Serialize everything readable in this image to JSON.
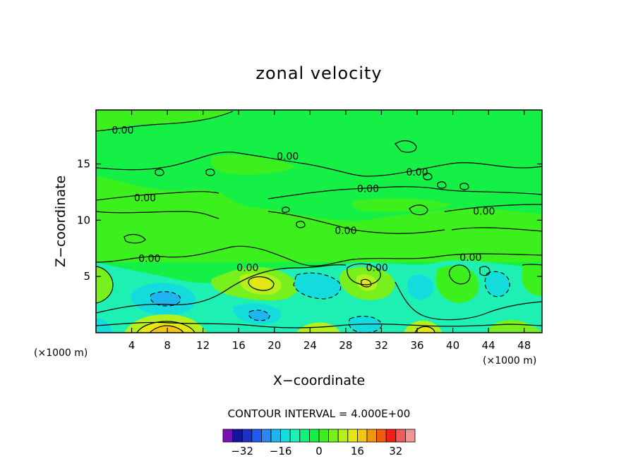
{
  "chart_data": {
    "type": "contour",
    "title": "zonal velocity",
    "xlabel": "X−coordinate",
    "ylabel": "Z−coordinate",
    "x_unit": "(×1000 m)",
    "y_unit": "(×1000 m)",
    "xlim": [
      0,
      50
    ],
    "ylim": [
      0,
      19.8
    ],
    "x_ticks": [
      4,
      8,
      12,
      16,
      20,
      24,
      28,
      32,
      36,
      40,
      44,
      48
    ],
    "y_ticks": [
      5,
      10,
      15
    ],
    "x_tick_labels": [
      "4",
      "8",
      "12",
      "16",
      "20",
      "24",
      "28",
      "32",
      "36",
      "40",
      "44",
      "48"
    ],
    "y_tick_labels": [
      "5",
      "10",
      "15"
    ],
    "contour_interval_text": "CONTOUR INTERVAL = 4.000E+00",
    "contour_labels": [
      {
        "text": "0.00",
        "x": 3.0,
        "y": 18.0
      },
      {
        "text": "0.00",
        "x": 21.5,
        "y": 15.7
      },
      {
        "text": "0.00",
        "x": 36.0,
        "y": 14.3
      },
      {
        "text": "0.00",
        "x": 5.5,
        "y": 12.0
      },
      {
        "text": "0.00",
        "x": 30.5,
        "y": 12.8
      },
      {
        "text": "0.00",
        "x": 43.5,
        "y": 10.8
      },
      {
        "text": "0.00",
        "x": 28.0,
        "y": 9.1
      },
      {
        "text": "0.00",
        "x": 6.0,
        "y": 6.6
      },
      {
        "text": "0.00",
        "x": 17.0,
        "y": 5.8
      },
      {
        "text": "0.00",
        "x": 31.5,
        "y": 5.8
      },
      {
        "text": "0.00",
        "x": 42.0,
        "y": 6.7
      }
    ],
    "colorbar": {
      "colors": [
        "#7a0fb8",
        "#1414a0",
        "#1e2ec8",
        "#1e5af0",
        "#2a86f0",
        "#1eb4f0",
        "#14dcdc",
        "#1ef0b4",
        "#14f078",
        "#14f046",
        "#3cf01e",
        "#78f01e",
        "#b4f01e",
        "#e6e614",
        "#f0c814",
        "#f0960a",
        "#f05a0a",
        "#f01e14",
        "#f05a5a",
        "#f09696"
      ],
      "tick_values": [
        -32,
        -16,
        0,
        16,
        32
      ],
      "tick_labels": [
        "−32",
        "−16",
        "0",
        "16",
        "32"
      ],
      "min": -40,
      "max": 40
    }
  }
}
